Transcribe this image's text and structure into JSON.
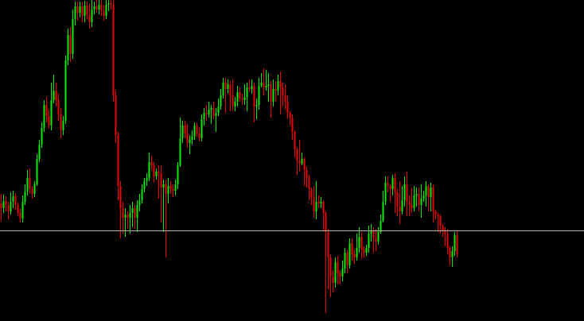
{
  "colors": {
    "background": "#000000",
    "bull": "#00ee00",
    "bear": "#ee0000",
    "price_line": "#b8b8b8"
  },
  "chart_data": {
    "type": "candlestick",
    "title": "",
    "xlabel": "",
    "ylabel": "",
    "grid": false,
    "legend": "none",
    "ylim": [
      0,
      404
    ],
    "current_price": 114,
    "candles": [
      [
        148,
        142,
        160,
        126
      ],
      [
        142,
        151,
        159,
        136
      ],
      [
        151,
        146,
        157,
        138
      ],
      [
        146,
        138,
        150,
        128
      ],
      [
        138,
        150,
        162,
        134
      ],
      [
        150,
        157,
        164,
        142
      ],
      [
        157,
        146,
        161,
        140
      ],
      [
        146,
        136,
        149,
        132
      ],
      [
        136,
        129,
        141,
        124
      ],
      [
        129,
        150,
        158,
        124
      ],
      [
        150,
        163,
        172,
        146
      ],
      [
        163,
        180,
        190,
        158
      ],
      [
        180,
        166,
        192,
        160
      ],
      [
        166,
        160,
        170,
        154
      ],
      [
        160,
        172,
        176,
        156
      ],
      [
        172,
        204,
        210,
        170
      ],
      [
        204,
        222,
        228,
        200
      ],
      [
        222,
        243,
        250,
        218
      ],
      [
        243,
        272,
        278,
        238
      ],
      [
        272,
        258,
        282,
        250
      ],
      [
        258,
        246,
        266,
        242
      ],
      [
        246,
        278,
        300,
        240
      ],
      [
        278,
        290,
        310,
        274
      ],
      [
        290,
        278,
        300,
        270
      ],
      [
        278,
        260,
        286,
        252
      ],
      [
        260,
        240,
        268,
        230
      ],
      [
        240,
        252,
        258,
        234
      ],
      [
        252,
        328,
        334,
        248
      ],
      [
        328,
        360,
        368,
        322
      ],
      [
        360,
        336,
        370,
        326
      ],
      [
        336,
        380,
        392,
        330
      ],
      [
        380,
        396,
        402,
        372
      ],
      [
        396,
        388,
        402,
        378
      ],
      [
        388,
        396,
        402,
        382
      ],
      [
        396,
        384,
        402,
        376
      ],
      [
        384,
        397,
        403,
        376
      ],
      [
        397,
        386,
        402,
        380
      ],
      [
        386,
        376,
        400,
        368
      ],
      [
        376,
        392,
        404,
        370
      ],
      [
        392,
        396,
        402,
        386
      ],
      [
        396,
        392,
        404,
        388
      ],
      [
        392,
        398,
        404,
        386
      ],
      [
        398,
        390,
        404,
        384
      ],
      [
        390,
        384,
        398,
        378
      ],
      [
        384,
        398,
        404,
        380
      ],
      [
        398,
        400,
        404,
        390
      ],
      [
        400,
        398,
        404,
        392
      ],
      [
        398,
        284,
        404,
        276
      ],
      [
        284,
        234,
        290,
        224
      ],
      [
        234,
        170,
        238,
        152
      ],
      [
        170,
        142,
        176,
        104
      ],
      [
        142,
        130,
        150,
        110
      ],
      [
        130,
        134,
        142,
        106
      ],
      [
        134,
        130,
        138,
        116
      ],
      [
        130,
        136,
        146,
        110
      ],
      [
        136,
        142,
        150,
        118
      ],
      [
        142,
        130,
        146,
        116
      ],
      [
        130,
        146,
        152,
        112
      ],
      [
        146,
        152,
        160,
        138
      ],
      [
        152,
        166,
        172,
        148
      ],
      [
        166,
        176,
        180,
        162
      ],
      [
        176,
        180,
        186,
        170
      ],
      [
        180,
        200,
        212,
        176
      ],
      [
        200,
        196,
        208,
        190
      ],
      [
        196,
        182,
        200,
        174
      ],
      [
        182,
        188,
        192,
        178
      ],
      [
        188,
        186,
        196,
        154
      ],
      [
        186,
        168,
        196,
        124
      ],
      [
        168,
        172,
        178,
        112
      ],
      [
        172,
        160,
        178,
        80
      ],
      [
        160,
        170,
        180,
        148
      ],
      [
        170,
        166,
        176,
        160
      ],
      [
        166,
        164,
        172,
        156
      ],
      [
        164,
        172,
        178,
        158
      ],
      [
        172,
        196,
        200,
        166
      ],
      [
        196,
        230,
        256,
        194
      ],
      [
        230,
        246,
        252,
        224
      ],
      [
        246,
        236,
        252,
        230
      ],
      [
        236,
        224,
        248,
        218
      ],
      [
        224,
        228,
        234,
        210
      ],
      [
        228,
        232,
        240,
        222
      ],
      [
        232,
        246,
        250,
        228
      ],
      [
        246,
        236,
        250,
        232
      ],
      [
        236,
        230,
        244,
        226
      ],
      [
        230,
        254,
        260,
        226
      ],
      [
        254,
        262,
        268,
        246
      ],
      [
        262,
        260,
        272,
        252
      ],
      [
        260,
        266,
        276,
        256
      ],
      [
        266,
        268,
        272,
        248
      ],
      [
        268,
        258,
        276,
        254
      ],
      [
        258,
        262,
        268,
        238
      ],
      [
        262,
        270,
        280,
        258
      ],
      [
        270,
        284,
        292,
        266
      ],
      [
        284,
        300,
        306,
        280
      ],
      [
        300,
        292,
        306,
        262
      ],
      [
        292,
        298,
        304,
        286
      ],
      [
        298,
        284,
        302,
        264
      ],
      [
        284,
        270,
        304,
        264
      ],
      [
        270,
        276,
        282,
        264
      ],
      [
        276,
        288,
        296,
        270
      ],
      [
        288,
        280,
        294,
        276
      ],
      [
        280,
        278,
        286,
        272
      ],
      [
        278,
        282,
        298,
        272
      ],
      [
        282,
        294,
        300,
        264
      ],
      [
        294,
        292,
        304,
        288
      ],
      [
        292,
        296,
        304,
        286
      ],
      [
        296,
        270,
        300,
        250
      ],
      [
        270,
        272,
        280,
        254
      ],
      [
        272,
        296,
        306,
        266
      ],
      [
        296,
        300,
        312,
        294
      ],
      [
        300,
        294,
        318,
        284
      ],
      [
        294,
        296,
        316,
        290
      ],
      [
        296,
        298,
        312,
        276
      ],
      [
        298,
        276,
        302,
        256
      ],
      [
        276,
        292,
        304,
        270
      ],
      [
        292,
        290,
        302,
        276
      ],
      [
        290,
        302,
        310,
        284
      ],
      [
        302,
        294,
        314,
        260
      ],
      [
        294,
        284,
        300,
        270
      ],
      [
        284,
        276,
        298,
        266
      ],
      [
        276,
        262,
        284,
        254
      ],
      [
        262,
        256,
        264,
        246
      ],
      [
        256,
        238,
        260,
        228
      ],
      [
        238,
        216,
        240,
        206
      ],
      [
        216,
        202,
        218,
        184
      ],
      [
        202,
        198,
        228,
        188
      ],
      [
        198,
        204,
        212,
        196
      ],
      [
        204,
        190,
        206,
        170
      ],
      [
        190,
        180,
        194,
        168
      ],
      [
        180,
        166,
        184,
        152
      ],
      [
        166,
        156,
        168,
        146
      ],
      [
        156,
        138,
        170,
        130
      ],
      [
        138,
        150,
        176,
        128
      ],
      [
        150,
        148,
        158,
        142
      ],
      [
        148,
        150,
        156,
        142
      ],
      [
        150,
        136,
        152,
        114
      ],
      [
        136,
        112,
        138,
        10
      ],
      [
        112,
        80,
        116,
        40
      ],
      [
        80,
        56,
        84,
        30
      ],
      [
        56,
        48,
        64,
        36
      ],
      [
        48,
        74,
        80,
        42
      ],
      [
        74,
        60,
        82,
        46
      ],
      [
        60,
        56,
        64,
        46
      ],
      [
        56,
        66,
        76,
        50
      ],
      [
        66,
        86,
        92,
        60
      ],
      [
        86,
        70,
        90,
        60
      ],
      [
        70,
        98,
        104,
        66
      ],
      [
        98,
        84,
        104,
        76
      ],
      [
        84,
        80,
        90,
        72
      ],
      [
        80,
        92,
        110,
        76
      ],
      [
        92,
        106,
        118,
        86
      ],
      [
        106,
        90,
        112,
        78
      ],
      [
        90,
        86,
        94,
        80
      ],
      [
        86,
        92,
        96,
        82
      ],
      [
        92,
        110,
        120,
        86
      ],
      [
        110,
        114,
        122,
        100
      ],
      [
        114,
        104,
        118,
        86
      ],
      [
        104,
        100,
        116,
        88
      ],
      [
        100,
        112,
        118,
        96
      ],
      [
        112,
        126,
        134,
        110
      ],
      [
        126,
        150,
        164,
        124
      ],
      [
        150,
        174,
        182,
        146
      ],
      [
        174,
        170,
        182,
        162
      ],
      [
        170,
        166,
        172,
        150
      ],
      [
        166,
        180,
        184,
        158
      ],
      [
        180,
        162,
        186,
        136
      ],
      [
        162,
        144,
        166,
        132
      ],
      [
        144,
        138,
        176,
        122
      ],
      [
        138,
        152,
        170,
        134
      ],
      [
        152,
        172,
        182,
        144
      ],
      [
        172,
        150,
        188,
        132
      ],
      [
        150,
        146,
        158,
        132
      ],
      [
        146,
        142,
        168,
        136
      ],
      [
        142,
        158,
        170,
        138
      ],
      [
        158,
        160,
        168,
        144
      ],
      [
        160,
        146,
        168,
        138
      ],
      [
        146,
        154,
        172,
        130
      ],
      [
        154,
        158,
        164,
        150
      ],
      [
        158,
        170,
        176,
        144
      ],
      [
        170,
        156,
        172,
        138
      ],
      [
        156,
        168,
        174,
        138
      ],
      [
        168,
        138,
        172,
        124
      ],
      [
        138,
        134,
        140,
        128
      ],
      [
        134,
        132,
        136,
        112
      ],
      [
        132,
        120,
        134,
        110
      ],
      [
        120,
        114,
        122,
        106
      ],
      [
        114,
        110,
        118,
        94
      ],
      [
        110,
        92,
        116,
        84
      ],
      [
        92,
        80,
        94,
        70
      ],
      [
        80,
        88,
        94,
        68
      ],
      [
        88,
        108,
        112,
        82
      ],
      [
        108,
        84,
        114,
        80
      ]
    ]
  }
}
